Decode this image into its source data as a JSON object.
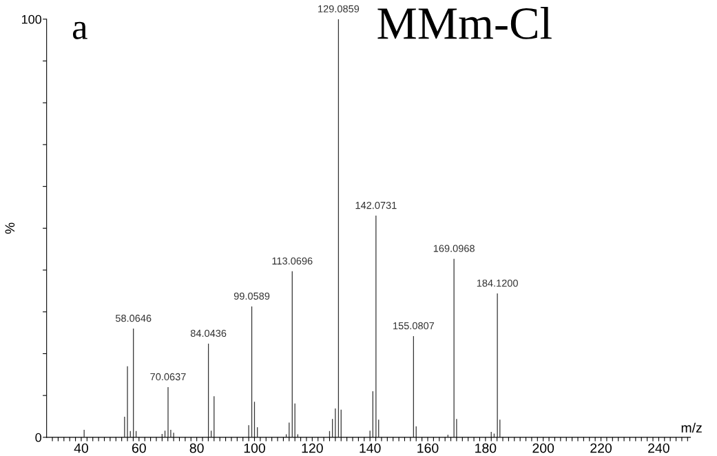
{
  "chart_data": {
    "type": "bar",
    "title": "MMm-Cl",
    "xlabel": "m/z",
    "ylabel": "%",
    "series": [
      {
        "color": "#333333",
        "x": [
          41,
          55,
          56,
          57,
          58.0646,
          59,
          68,
          69,
          70.0637,
          71,
          72,
          84.0436,
          85,
          86,
          98,
          99.0589,
          100,
          101,
          111,
          112,
          113.0696,
          114,
          115,
          126,
          127,
          128,
          129.0859,
          130,
          140,
          141,
          142.0731,
          143,
          155.0807,
          156,
          167,
          169.0968,
          170,
          182,
          183,
          184.12,
          185
        ],
        "values": [
          1.8,
          4.9,
          17.0,
          1.5,
          26.0,
          1.5,
          0.8,
          1.6,
          12.0,
          1.8,
          1.1,
          22.4,
          1.6,
          9.8,
          2.9,
          31.3,
          8.5,
          2.4,
          0.7,
          3.5,
          39.7,
          8.1,
          0.7,
          1.5,
          4.4,
          6.9,
          100,
          6.6,
          1.6,
          11.0,
          53.0,
          4.2,
          24.2,
          2.6,
          0.6,
          42.7,
          4.4,
          1.3,
          0.9,
          34.4,
          4.2
        ]
      }
    ],
    "annotations": [
      "a",
      {
        "text": "58.0646",
        "x": 58.0646,
        "y": 26.0
      },
      {
        "text": "70.0637",
        "x": 70.0637,
        "y": 12.0
      },
      {
        "text": "84.0436",
        "x": 84.0436,
        "y": 22.4
      },
      {
        "text": "99.0589",
        "x": 99.0589,
        "y": 31.3
      },
      {
        "text": "113.0696",
        "x": 113.0696,
        "y": 39.7
      },
      {
        "text": "129.0859",
        "x": 129.0859,
        "y": 100
      },
      {
        "text": "142.0731",
        "x": 142.0731,
        "y": 53.0
      },
      {
        "text": "155.0807",
        "x": 155.0807,
        "y": 24.2
      },
      {
        "text": "169.0968",
        "x": 169.0968,
        "y": 42.7
      },
      {
        "text": "184.1200",
        "x": 184.12,
        "y": 34.4
      }
    ],
    "xlim": [
      28,
      251
    ],
    "ylim": [
      0,
      100
    ],
    "xticks": [
      {
        "value": 30,
        "label": null
      },
      {
        "value": 32,
        "label": null
      },
      {
        "value": 34,
        "label": null
      },
      {
        "value": 36,
        "label": null
      },
      {
        "value": 38,
        "label": null
      },
      40,
      {
        "value": 42,
        "label": null
      },
      {
        "value": 44,
        "label": null
      },
      {
        "value": 46,
        "label": null
      },
      {
        "value": 48,
        "label": null
      },
      {
        "value": 50,
        "label": null
      },
      {
        "value": 52,
        "label": null
      },
      {
        "value": 54,
        "label": null
      },
      {
        "value": 56,
        "label": null
      },
      {
        "value": 58,
        "label": null
      },
      60,
      {
        "value": 62,
        "label": null
      },
      {
        "value": 64,
        "label": null
      },
      {
        "value": 66,
        "label": null
      },
      {
        "value": 68,
        "label": null
      },
      {
        "value": 70,
        "label": null
      },
      {
        "value": 72,
        "label": null
      },
      {
        "value": 74,
        "label": null
      },
      {
        "value": 76,
        "label": null
      },
      {
        "value": 78,
        "label": null
      },
      80,
      {
        "value": 82,
        "label": null
      },
      {
        "value": 84,
        "label": null
      },
      {
        "value": 86,
        "label": null
      },
      {
        "value": 88,
        "label": null
      },
      {
        "value": 90,
        "label": null
      },
      {
        "value": 92,
        "label": null
      },
      {
        "value": 94,
        "label": null
      },
      {
        "value": 96,
        "label": null
      },
      {
        "value": 98,
        "label": null
      },
      100,
      {
        "value": 102,
        "label": null
      },
      {
        "value": 104,
        "label": null
      },
      {
        "value": 106,
        "label": null
      },
      {
        "value": 108,
        "label": null
      },
      {
        "value": 110,
        "label": null
      },
      {
        "value": 112,
        "label": null
      },
      {
        "value": 114,
        "label": null
      },
      {
        "value": 116,
        "label": null
      },
      {
        "value": 118,
        "label": null
      },
      120,
      {
        "value": 122,
        "label": null
      },
      {
        "value": 124,
        "label": null
      },
      {
        "value": 126,
        "label": null
      },
      {
        "value": 128,
        "label": null
      },
      {
        "value": 130,
        "label": null
      },
      {
        "value": 132,
        "label": null
      },
      {
        "value": 134,
        "label": null
      },
      {
        "value": 136,
        "label": null
      },
      {
        "value": 138,
        "label": null
      },
      140,
      {
        "value": 142,
        "label": null
      },
      {
        "value": 144,
        "label": null
      },
      {
        "value": 146,
        "label": null
      },
      {
        "value": 148,
        "label": null
      },
      {
        "value": 150,
        "label": null
      },
      {
        "value": 152,
        "label": null
      },
      {
        "value": 154,
        "label": null
      },
      {
        "value": 156,
        "label": null
      },
      {
        "value": 158,
        "label": null
      },
      160,
      {
        "value": 162,
        "label": null
      },
      {
        "value": 164,
        "label": null
      },
      {
        "value": 166,
        "label": null
      },
      {
        "value": 168,
        "label": null
      },
      {
        "value": 170,
        "label": null
      },
      {
        "value": 172,
        "label": null
      },
      {
        "value": 174,
        "label": null
      },
      {
        "value": 176,
        "label": null
      },
      {
        "value": 178,
        "label": null
      },
      180,
      {
        "value": 182,
        "label": null
      },
      {
        "value": 184,
        "label": null
      },
      {
        "value": 186,
        "label": null
      },
      {
        "value": 188,
        "label": null
      },
      {
        "value": 190,
        "label": null
      },
      {
        "value": 192,
        "label": null
      },
      {
        "value": 194,
        "label": null
      },
      {
        "value": 196,
        "label": null
      },
      {
        "value": 198,
        "label": null
      },
      200,
      {
        "value": 202,
        "label": null
      },
      {
        "value": 204,
        "label": null
      },
      {
        "value": 206,
        "label": null
      },
      {
        "value": 208,
        "label": null
      },
      {
        "value": 210,
        "label": null
      },
      {
        "value": 212,
        "label": null
      },
      {
        "value": 214,
        "label": null
      },
      {
        "value": 216,
        "label": null
      },
      {
        "value": 218,
        "label": null
      },
      220,
      {
        "value": 222,
        "label": null
      },
      {
        "value": 224,
        "label": null
      },
      {
        "value": 226,
        "label": null
      },
      {
        "value": 228,
        "label": null
      },
      {
        "value": 230,
        "label": null
      },
      {
        "value": 232,
        "label": null
      },
      {
        "value": 234,
        "label": null
      },
      {
        "value": 236,
        "label": null
      },
      {
        "value": 238,
        "label": null
      },
      240,
      {
        "value": 242,
        "label": null
      },
      {
        "value": 244,
        "label": null
      },
      {
        "value": 246,
        "label": null
      },
      {
        "value": 248,
        "label": null
      },
      {
        "value": 250,
        "label": null
      }
    ],
    "yticks": [
      0,
      {
        "value": 10,
        "label": null
      },
      {
        "value": 20,
        "label": null
      },
      {
        "value": 30,
        "label": null
      },
      {
        "value": 40,
        "label": null
      },
      {
        "value": 50,
        "label": null
      },
      {
        "value": 60,
        "label": null
      },
      {
        "value": 70,
        "label": null
      },
      {
        "value": 80,
        "label": null
      },
      {
        "value": 90,
        "label": null
      },
      100
    ],
    "grid": false
  }
}
